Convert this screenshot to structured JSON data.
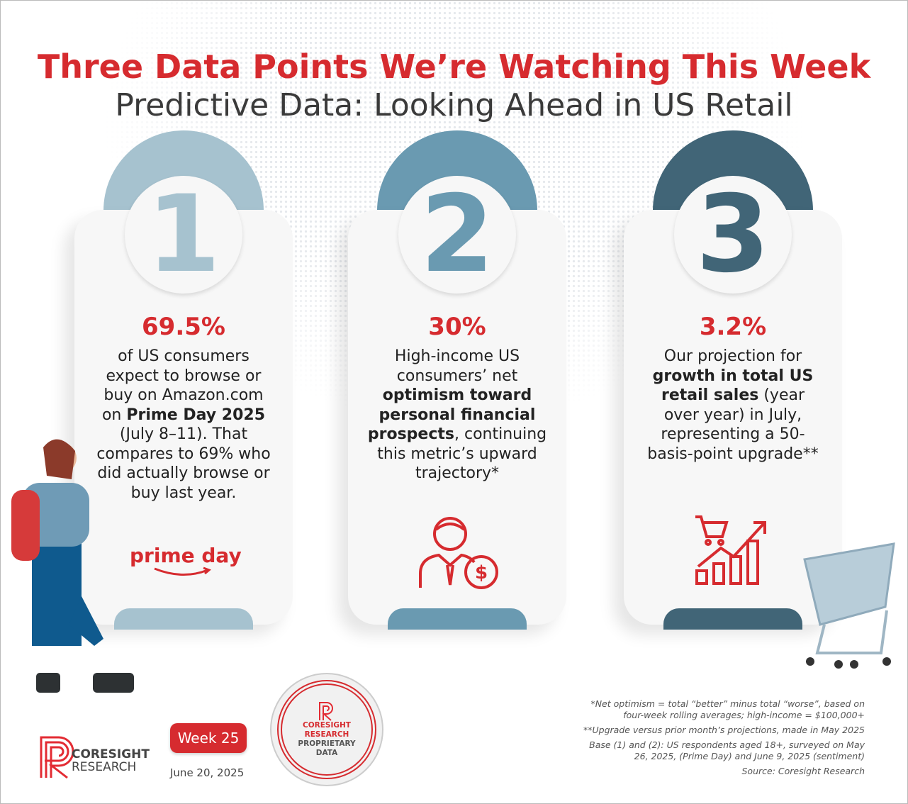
{
  "header": {
    "title": "Three Data Points We’re Watching This Week",
    "subtitle": "Predictive Data: Looking Ahead in US Retail"
  },
  "colors": {
    "accent": "#d62b2f",
    "card1": "#a6c2cf",
    "card2": "#6a9ab1",
    "card3": "#416577"
  },
  "cards": [
    {
      "number": "1",
      "stat": "69.5%",
      "segments": [
        {
          "t": "of US consumers expect to browse or buy on Amazon.com on "
        },
        {
          "b": "Prime Day 2025"
        },
        {
          "t": " (July 8–11). That compares to 69% who did actually browse or buy last year."
        }
      ],
      "logo_text": "prime day",
      "icon": "prime-day-logo"
    },
    {
      "number": "2",
      "stat": "30%",
      "segments": [
        {
          "t": "High-income US consumers’ net "
        },
        {
          "b": "optimism toward personal financial prospects"
        },
        {
          "t": ", continuing this metric’s upward trajectory*"
        }
      ],
      "icon": "businessman-dollar-icon"
    },
    {
      "number": "3",
      "stat": "3.2%",
      "segments": [
        {
          "t": "Our projection for "
        },
        {
          "b": "growth in total US retail sales"
        },
        {
          "t": " (year over year) in July, representing a 50-basis-point upgrade**"
        }
      ],
      "icon": "cart-growth-chart-icon"
    }
  ],
  "footer": {
    "notes": [
      "*Net optimism = total “better” minus total “worse”, based on four-week rolling averages; high-income = $100,000+",
      "**Upgrade versus prior month’s projections, made in May 2025",
      "Base (1) and (2): US respondents aged 18+, surveyed on May 26, 2025, (Prime Day) and June 9, 2025 (sentiment)",
      "Source: Coresight Research"
    ],
    "week": "Week 25",
    "date": "June 20, 2025",
    "logo": {
      "line1": "CORESIGHT",
      "line2": "RESEARCH"
    },
    "seal": {
      "line1": "CORESIGHT",
      "line2": "RESEARCH",
      "line3": "PROPRIETARY",
      "line4": "DATA"
    }
  }
}
